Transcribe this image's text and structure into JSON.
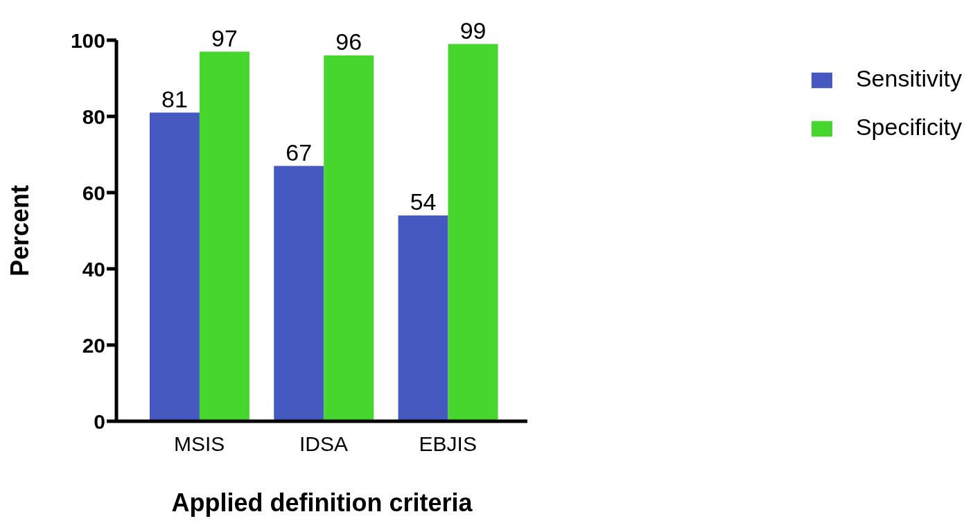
{
  "chart_data": {
    "type": "bar",
    "xlabel": "Applied definition criteria",
    "ylabel": "Percent",
    "categories": [
      "MSIS",
      "IDSA",
      "EBJIS"
    ],
    "series": [
      {
        "name": "Sensitivity",
        "color": "#4559c1",
        "values": [
          81,
          67,
          54
        ]
      },
      {
        "name": "Specificity",
        "color": "#46d62e",
        "values": [
          97,
          96,
          99
        ]
      }
    ],
    "ylim": [
      0,
      100
    ],
    "yticks": [
      0,
      20,
      40,
      60,
      80,
      100
    ],
    "grid": false,
    "legend": "top right",
    "data_labels": true
  }
}
